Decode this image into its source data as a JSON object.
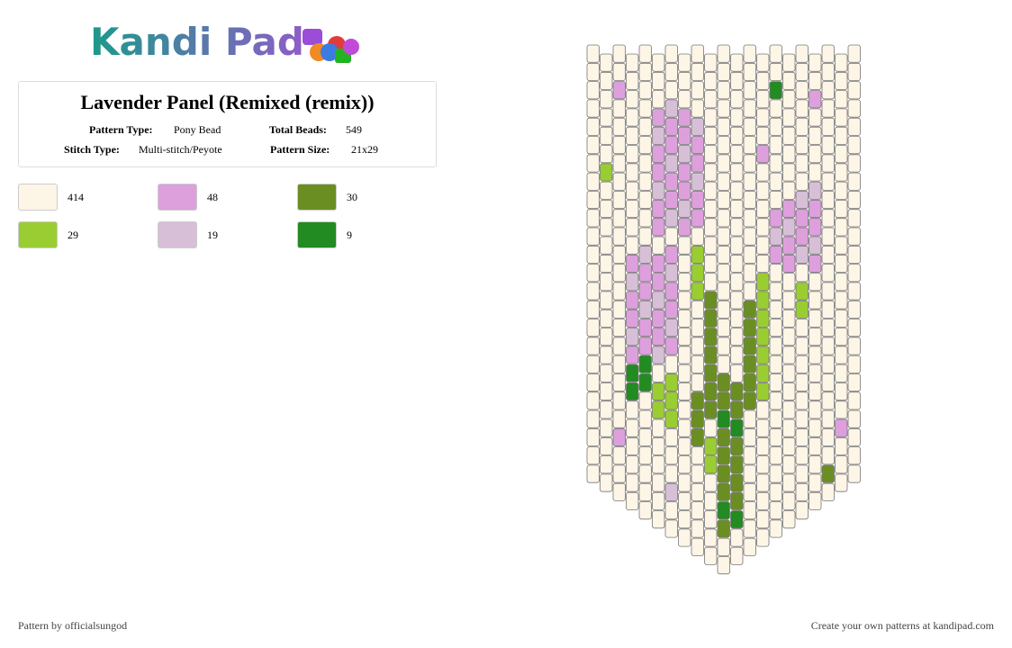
{
  "header": {
    "logo": "Kandi Pad"
  },
  "info": {
    "title": "Lavender Panel (Remixed (remix))",
    "pattern_type_label": "Pattern Type:",
    "pattern_type": "Pony Bead",
    "total_beads_label": "Total Beads:",
    "total_beads": "549",
    "stitch_type_label": "Stitch Type:",
    "stitch_type": "Multi-stitch/Peyote",
    "pattern_size_label": "Pattern Size:",
    "pattern_size": "21x29"
  },
  "legend": [
    {
      "color": "#fdf5e6",
      "count": "414"
    },
    {
      "color": "#dda0dd",
      "count": "48"
    },
    {
      "color": "#6b8e23",
      "count": "30"
    },
    {
      "color": "#9acd32",
      "count": "29"
    },
    {
      "color": "#d8bfd8",
      "count": "19"
    },
    {
      "color": "#228b22",
      "count": "9"
    }
  ],
  "footer": {
    "left": "Pattern by officialsungod",
    "right": "Create your own patterns at kandipad.com"
  }
}
